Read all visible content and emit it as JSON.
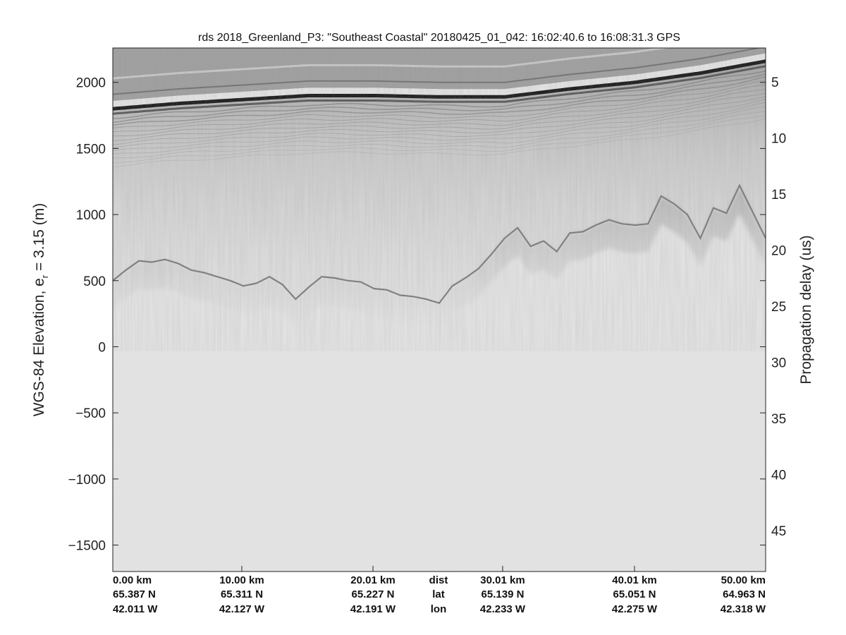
{
  "chart_data": {
    "type": "heatmap",
    "title": "rds 2018_Greenland_P3: \"Southeast Coastal\"  20180425_01_042: 16:02:40.6 to 16:08:31.3 GPS",
    "ylabel_main": "WGS-84 Elevation, e",
    "ylabel_sub": "r",
    "ylabel_tail": " = 3.15 (m)",
    "y2label": "Propagation delay (us)",
    "ylim": [
      -1700,
      2260
    ],
    "y_ticks": [
      2000,
      1500,
      1000,
      500,
      0,
      -500,
      -1000,
      -1500
    ],
    "y_tick_labels": [
      "2000",
      "1500",
      "1000",
      "500",
      "0",
      "−500",
      "−1000",
      "−1500"
    ],
    "y2_ticks": [
      5,
      10,
      15,
      20,
      25,
      30,
      35,
      40,
      45
    ],
    "y2_tick_labels": [
      "5",
      "10",
      "15",
      "20",
      "25",
      "30",
      "35",
      "40",
      "45"
    ],
    "x_km_range": [
      0,
      50
    ],
    "bottom_rows": [
      {
        "row": "dist",
        "values": [
          "0.00 km",
          "10.00 km",
          "20.01 km",
          "30.01 km",
          "40.01 km",
          "50.00 km"
        ]
      },
      {
        "row": "lat",
        "values": [
          "65.387 N",
          "65.311 N",
          "65.227 N",
          "65.139 N",
          "65.051 N",
          "64.963 N"
        ]
      },
      {
        "row": "lon",
        "values": [
          "42.011 W",
          "42.127 W",
          "42.191 W",
          "42.233 W",
          "42.275 W",
          "42.318 W"
        ]
      }
    ],
    "surface_profile": {
      "x_km": [
        0,
        5,
        10,
        15,
        20,
        25,
        30,
        35,
        40,
        45,
        50
      ],
      "elevation_m": [
        1800,
        1840,
        1870,
        1900,
        1900,
        1890,
        1890,
        1950,
        2000,
        2070,
        2160
      ]
    },
    "bed_profile": {
      "x_km": [
        0,
        1,
        2,
        3,
        4,
        5,
        6,
        7,
        8,
        9,
        10,
        11,
        12,
        13,
        14,
        15,
        16,
        17,
        18,
        19,
        20,
        21,
        22,
        23,
        24,
        25,
        26,
        27,
        28,
        29,
        30,
        31,
        32,
        33,
        34,
        35,
        36,
        37,
        38,
        39,
        40,
        41,
        42,
        43,
        44,
        45,
        46,
        47,
        48,
        49,
        50
      ],
      "elevation_m": [
        500,
        580,
        650,
        640,
        660,
        630,
        580,
        560,
        530,
        500,
        460,
        480,
        530,
        470,
        360,
        450,
        530,
        520,
        500,
        490,
        440,
        430,
        390,
        380,
        360,
        330,
        460,
        520,
        590,
        700,
        820,
        900,
        760,
        800,
        720,
        860,
        870,
        920,
        960,
        930,
        920,
        930,
        1140,
        1080,
        1000,
        820,
        1050,
        1010,
        1220,
        1020,
        820
      ]
    },
    "colormap": "grayscale",
    "grid": false,
    "legend": "none"
  }
}
